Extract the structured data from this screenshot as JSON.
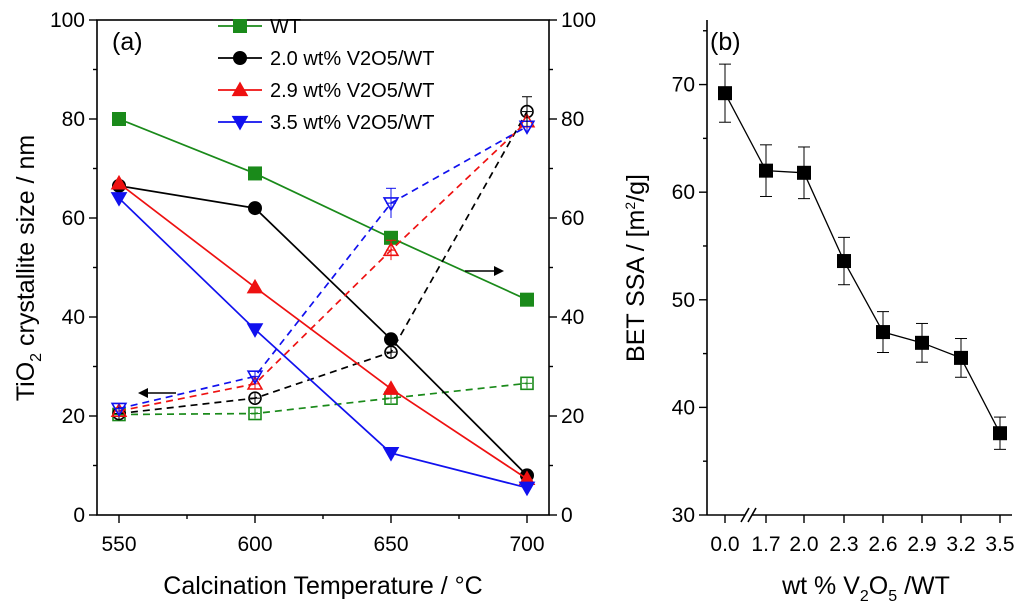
{
  "chart_data": [
    {
      "panel": "(a)",
      "type": "line",
      "x": [
        550,
        600,
        650,
        700
      ],
      "xlabel": "Calcination Temperature / °C",
      "ylabel_left": {
        "prefix": "TiO",
        "sub": "2",
        "suffix": " crystallite size / nm"
      },
      "ylim_left": [
        0,
        100
      ],
      "ylim_right": [
        0,
        100
      ],
      "x_ticks": [
        "550",
        "600",
        "650",
        "700"
      ],
      "y_ticks": [
        "0",
        "20",
        "40",
        "60",
        "80",
        "100"
      ],
      "arrows": [
        {
          "direction": "left",
          "meaning": "dashed lines / open markers read on left axis"
        },
        {
          "direction": "right",
          "meaning": "solid lines / filled markers read on right axis"
        }
      ],
      "series": [
        {
          "name": "WT",
          "color": "#1a8a1a",
          "marker": "square",
          "solid_values": [
            80,
            69,
            56,
            43.5
          ],
          "dashed_values": [
            20.3,
            20.5,
            23.6,
            26.6
          ]
        },
        {
          "name": "2.0 wt% V2O5/WT",
          "color": "#000000",
          "marker": "circle",
          "solid_values": [
            66.5,
            62,
            35.5,
            8
          ],
          "dashed_values": [
            20.5,
            23.6,
            32.9,
            81.5
          ]
        },
        {
          "name": "2.9 wt% V2O5/WT",
          "color": "#ee1111",
          "marker": "triangle-up",
          "solid_values": [
            67,
            46,
            25.5,
            7.3
          ],
          "dashed_values": [
            21,
            26.5,
            53.5,
            79.5
          ]
        },
        {
          "name": "3.5 wt% V2O5/WT",
          "color": "#1111ee",
          "marker": "triangle-down",
          "solid_values": [
            64,
            37.5,
            12.5,
            5.5
          ],
          "dashed_values": [
            21.5,
            28,
            63,
            78.5
          ]
        }
      ]
    },
    {
      "panel": "(b)",
      "type": "line",
      "categories": [
        "0.0",
        "1.7",
        "2.0",
        "2.3",
        "2.6",
        "2.9",
        "3.2",
        "3.5"
      ],
      "values": [
        69.2,
        62.0,
        61.8,
        53.6,
        47.0,
        46.0,
        44.6,
        37.6
      ],
      "errors": [
        2.7,
        2.4,
        2.4,
        2.2,
        1.9,
        1.8,
        1.8,
        1.5
      ],
      "xlabel": {
        "prefix": "wt % V",
        "sub1": "2",
        "mid": "O",
        "sub2": "5",
        "suffix": " /WT"
      },
      "ylabel": {
        "prefix": "BET SSA / [m",
        "sup": "2",
        "suffix": "/g]"
      },
      "ylim": [
        30,
        76
      ],
      "y_ticks": [
        "30",
        "40",
        "50",
        "60",
        "70"
      ],
      "axis_break": true,
      "color": "#000000",
      "marker": "square"
    }
  ]
}
